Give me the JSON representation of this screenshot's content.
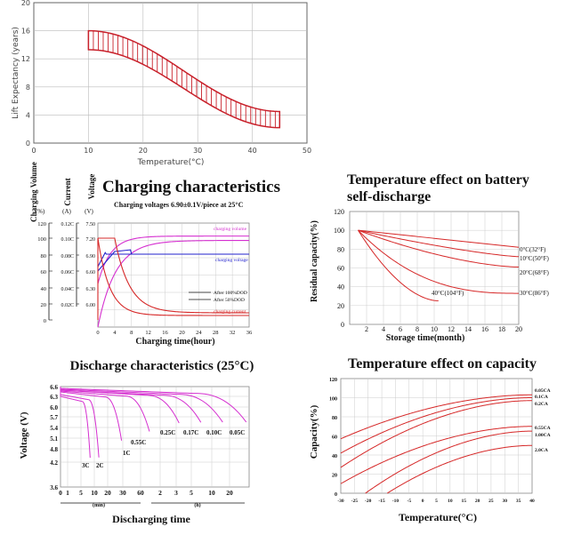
{
  "life_chart": {
    "ylabel": "Lift Expectancy (years)",
    "xlabel": "Temperature(°C)",
    "xticks": [
      "0",
      "10",
      "20",
      "30",
      "40",
      "50"
    ],
    "yticks": [
      "0",
      "4",
      "8",
      "12",
      "16",
      "20"
    ]
  },
  "charging_chart": {
    "title": "Charging characteristics",
    "subtitle": "Charging voltages 6.90±0.1V/piece at 25°C",
    "col_headers": [
      "Charging Volume",
      "Current",
      "Voltage"
    ],
    "col_units": [
      "(%)",
      "(A)",
      "(V)"
    ],
    "vol_ticks": [
      "120",
      "100",
      "80",
      "60",
      "40",
      "20",
      "0"
    ],
    "cur_ticks": [
      "0.12C",
      "0.10C",
      "0.08C",
      "0.06C",
      "0.04C",
      "0.02C"
    ],
    "volt_ticks": [
      "7.50",
      "7.20",
      "6.90",
      "6.60",
      "6.30",
      "6.00"
    ],
    "xticks": [
      "0",
      "4",
      "8",
      "12",
      "16",
      "20",
      "24",
      "28",
      "32",
      "36"
    ],
    "xlabel": "Charging time(hour)",
    "label_volume": "charging volume",
    "label_voltage": "charging voltage",
    "label_current": "charging current",
    "legend_100": "After 100%DOD",
    "legend_50": "After 50%DOD"
  },
  "selfdis_chart": {
    "title_line1": "Temperature effect on battery",
    "title_line2": "self-discharge",
    "ylabel": "Residual capacity(%)",
    "xlabel": "Storage time(month)",
    "yticks": [
      "0",
      "20",
      "40",
      "60",
      "80",
      "100",
      "120"
    ],
    "xticks": [
      "2",
      "4",
      "6",
      "8",
      "10",
      "12",
      "14",
      "16",
      "18",
      "20"
    ],
    "series": [
      "0°C(32°F)",
      "10°C(50°F)",
      "20°C(68°F)",
      "30°C(86°F)",
      "40°C(104°F)"
    ]
  },
  "discharge_chart": {
    "title": "Discharge characteristics (25°C)",
    "ylabel": "Voltage (V)",
    "yticks": [
      "6.6",
      "6.3",
      "6.0",
      "5.7",
      "5.4",
      "5.1",
      "4.8",
      "4.2",
      "3.6"
    ],
    "xticks_min": [
      "0",
      "1",
      "5",
      "10",
      "20",
      "30",
      "60"
    ],
    "xticks_h": [
      "2",
      "3",
      "5",
      "10",
      "20"
    ],
    "unit_min": "(min)",
    "unit_h": "(h)",
    "xlabel": "Discharging time",
    "series": [
      "3C",
      "2C",
      "1C",
      "0.55C",
      "0.25C",
      "0.17C",
      "0.10C",
      "0.05C"
    ]
  },
  "capacity_chart": {
    "title": "Temperature effect on capacity",
    "ylabel": "Capacity(%)",
    "xlabel": "Temperature(°C)",
    "yticks": [
      "0",
      "20",
      "40",
      "60",
      "80",
      "100",
      "120"
    ],
    "xticks": [
      "-30",
      "-25",
      "-20",
      "-15",
      "-10",
      "-5",
      "0",
      "5",
      "10",
      "15",
      "20",
      "25",
      "30",
      "35",
      "40"
    ],
    "series": [
      "0.05CA",
      "0.1CA",
      "0.2CA",
      "0.55CA",
      "1.00CA",
      "2.0CA"
    ]
  },
  "colors": {
    "red": "#d62828",
    "magenta": "#d52fd0",
    "blue": "#2222cc",
    "black": "#111111"
  }
}
